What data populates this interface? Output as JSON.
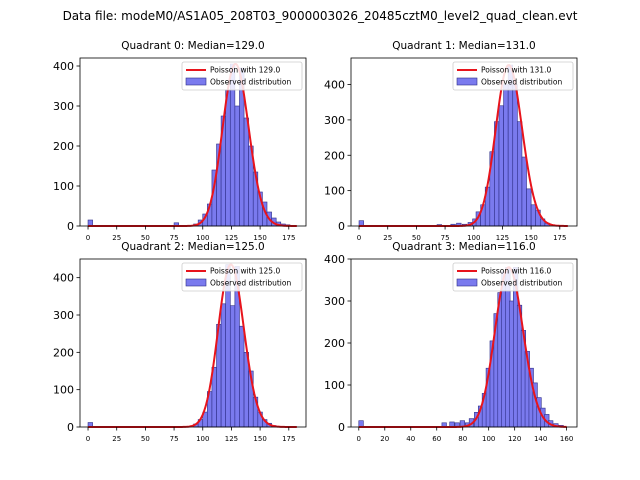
{
  "suptitle": "Data file: modeM0/AS1A05_208T03_9000003026_20485cztM0_level2_quad_clean.evt",
  "chart_data": [
    {
      "type": "bar",
      "title": "Quadrant 0: Median=129.0",
      "median": 129.0,
      "legend": {
        "line": "Poisson with 129.0",
        "bars": "Observed distribution",
        "placement": "top-right"
      },
      "xlim": [
        -7,
        190
      ],
      "ylim": [
        0,
        420
      ],
      "xticks": [
        0,
        25,
        50,
        75,
        100,
        125,
        150,
        175
      ],
      "yticks": [
        0,
        100,
        200,
        300,
        400
      ],
      "bin_width": 4,
      "bins": [
        {
          "x": 0,
          "count": 15
        },
        {
          "x": 75,
          "count": 8
        },
        {
          "x": 92,
          "count": 5
        },
        {
          "x": 96,
          "count": 15
        },
        {
          "x": 100,
          "count": 30
        },
        {
          "x": 104,
          "count": 55
        },
        {
          "x": 108,
          "count": 140
        },
        {
          "x": 112,
          "count": 205
        },
        {
          "x": 116,
          "count": 275
        },
        {
          "x": 120,
          "count": 340
        },
        {
          "x": 124,
          "count": 405
        },
        {
          "x": 128,
          "count": 300
        },
        {
          "x": 132,
          "count": 395
        },
        {
          "x": 136,
          "count": 270
        },
        {
          "x": 140,
          "count": 200
        },
        {
          "x": 144,
          "count": 135
        },
        {
          "x": 148,
          "count": 85
        },
        {
          "x": 152,
          "count": 60
        },
        {
          "x": 156,
          "count": 35
        },
        {
          "x": 160,
          "count": 20
        },
        {
          "x": 164,
          "count": 10
        },
        {
          "x": 168,
          "count": 5
        },
        {
          "x": 172,
          "count": 3
        }
      ]
    },
    {
      "type": "bar",
      "title": "Quadrant 1: Median=131.0",
      "median": 131.0,
      "legend": {
        "line": "Poisson with 131.0",
        "bars": "Observed distribution",
        "placement": "top-right"
      },
      "xlim": [
        -7,
        190
      ],
      "ylim": [
        0,
        475
      ],
      "xticks": [
        0,
        25,
        50,
        75,
        100,
        125,
        150,
        175
      ],
      "yticks": [
        0,
        100,
        200,
        300,
        400
      ],
      "bin_width": 4,
      "bins": [
        {
          "x": 0,
          "count": 15
        },
        {
          "x": 68,
          "count": 4
        },
        {
          "x": 80,
          "count": 5
        },
        {
          "x": 85,
          "count": 8
        },
        {
          "x": 90,
          "count": 5
        },
        {
          "x": 95,
          "count": 10
        },
        {
          "x": 99,
          "count": 20
        },
        {
          "x": 102,
          "count": 40
        },
        {
          "x": 106,
          "count": 60
        },
        {
          "x": 110,
          "count": 110
        },
        {
          "x": 114,
          "count": 210
        },
        {
          "x": 118,
          "count": 295
        },
        {
          "x": 122,
          "count": 340
        },
        {
          "x": 126,
          "count": 400
        },
        {
          "x": 130,
          "count": 455
        },
        {
          "x": 134,
          "count": 400
        },
        {
          "x": 138,
          "count": 295
        },
        {
          "x": 142,
          "count": 195
        },
        {
          "x": 146,
          "count": 105
        },
        {
          "x": 150,
          "count": 60
        },
        {
          "x": 154,
          "count": 45
        },
        {
          "x": 158,
          "count": 20
        },
        {
          "x": 162,
          "count": 8
        }
      ]
    },
    {
      "type": "bar",
      "title": "Quadrant 2: Median=125.0",
      "median": 125.0,
      "legend": {
        "line": "Poisson with 125.0",
        "bars": "Observed distribution",
        "placement": "top-right"
      },
      "xlim": [
        -7,
        190
      ],
      "ylim": [
        0,
        450
      ],
      "xticks": [
        0,
        25,
        50,
        75,
        100,
        125,
        150,
        175
      ],
      "yticks": [
        0,
        100,
        200,
        300,
        400
      ],
      "bin_width": 4,
      "bins": [
        {
          "x": 0,
          "count": 12
        },
        {
          "x": 92,
          "count": 8
        },
        {
          "x": 96,
          "count": 20
        },
        {
          "x": 100,
          "count": 40
        },
        {
          "x": 104,
          "count": 95
        },
        {
          "x": 108,
          "count": 160
        },
        {
          "x": 112,
          "count": 275
        },
        {
          "x": 116,
          "count": 330
        },
        {
          "x": 120,
          "count": 435
        },
        {
          "x": 124,
          "count": 325
        },
        {
          "x": 128,
          "count": 430
        },
        {
          "x": 132,
          "count": 270
        },
        {
          "x": 136,
          "count": 200
        },
        {
          "x": 140,
          "count": 150
        },
        {
          "x": 144,
          "count": 80
        },
        {
          "x": 148,
          "count": 40
        },
        {
          "x": 152,
          "count": 20
        },
        {
          "x": 156,
          "count": 10
        },
        {
          "x": 160,
          "count": 4
        }
      ]
    },
    {
      "type": "bar",
      "title": "Quadrant 3: Median=116.0",
      "median": 116.0,
      "legend": {
        "line": "Poisson with 116.0",
        "bars": "Observed distribution",
        "placement": "top-right"
      },
      "xlim": [
        -6,
        168
      ],
      "ylim": [
        0,
        400
      ],
      "xticks": [
        0,
        20,
        40,
        60,
        80,
        100,
        120,
        140,
        160
      ],
      "yticks": [
        0,
        100,
        200,
        300,
        400
      ],
      "bin_width": 3.5,
      "bins": [
        {
          "x": 0,
          "count": 15
        },
        {
          "x": 64,
          "count": 10
        },
        {
          "x": 70,
          "count": 12
        },
        {
          "x": 74,
          "count": 10
        },
        {
          "x": 78,
          "count": 15
        },
        {
          "x": 82,
          "count": 10
        },
        {
          "x": 85,
          "count": 20
        },
        {
          "x": 89,
          "count": 35
        },
        {
          "x": 92,
          "count": 50
        },
        {
          "x": 95,
          "count": 80
        },
        {
          "x": 98,
          "count": 140
        },
        {
          "x": 101,
          "count": 205
        },
        {
          "x": 104,
          "count": 270
        },
        {
          "x": 107,
          "count": 320
        },
        {
          "x": 110,
          "count": 370
        },
        {
          "x": 113,
          "count": 380
        },
        {
          "x": 116,
          "count": 300
        },
        {
          "x": 119,
          "count": 380
        },
        {
          "x": 122,
          "count": 290
        },
        {
          "x": 125,
          "count": 230
        },
        {
          "x": 128,
          "count": 180
        },
        {
          "x": 131,
          "count": 140
        },
        {
          "x": 134,
          "count": 105
        },
        {
          "x": 137,
          "count": 70
        },
        {
          "x": 140,
          "count": 45
        },
        {
          "x": 143,
          "count": 30
        },
        {
          "x": 146,
          "count": 15
        },
        {
          "x": 150,
          "count": 8
        },
        {
          "x": 154,
          "count": 4
        }
      ]
    }
  ]
}
